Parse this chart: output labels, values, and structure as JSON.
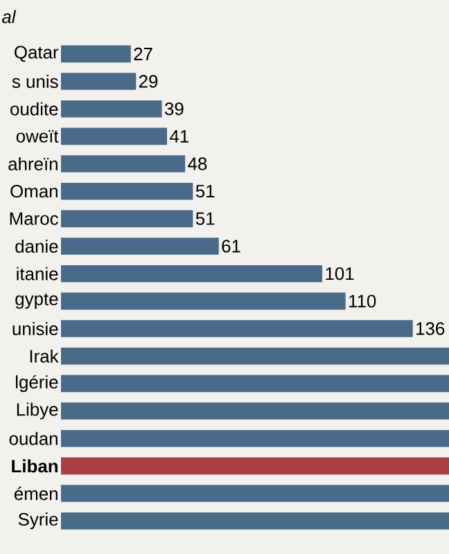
{
  "chart_data": {
    "type": "bar",
    "orientation": "horizontal",
    "title": "al",
    "categories": [
      "Qatar",
      "s unis",
      "oudite",
      "oweït",
      "ahreïn",
      "Oman",
      "Maroc",
      "danie",
      "itanie",
      "gypte",
      "unisie",
      "Irak",
      "lgérie",
      "Libye",
      "oudan",
      "Liban",
      "émen",
      "Syrie"
    ],
    "values": [
      27,
      29,
      39,
      41,
      48,
      51,
      51,
      61,
      101,
      110,
      136,
      150,
      150,
      150,
      150,
      150,
      150,
      150
    ],
    "value_labels": [
      "27",
      "29",
      "39",
      "41",
      "48",
      "51",
      "51",
      "61",
      "101",
      "110",
      "136",
      null,
      null,
      null,
      null,
      null,
      null,
      null
    ],
    "colors": [
      "#4a6a89",
      "#4a6a89",
      "#4a6a89",
      "#4a6a89",
      "#4a6a89",
      "#4a6a89",
      "#4a6a89",
      "#4a6a89",
      "#4a6a89",
      "#4a6a89",
      "#4a6a89",
      "#4a6a89",
      "#4a6a89",
      "#4a6a89",
      "#4a6a89",
      "#a83f45",
      "#4a6a89",
      "#4a6a89"
    ],
    "xlim": [
      0,
      150
    ]
  }
}
